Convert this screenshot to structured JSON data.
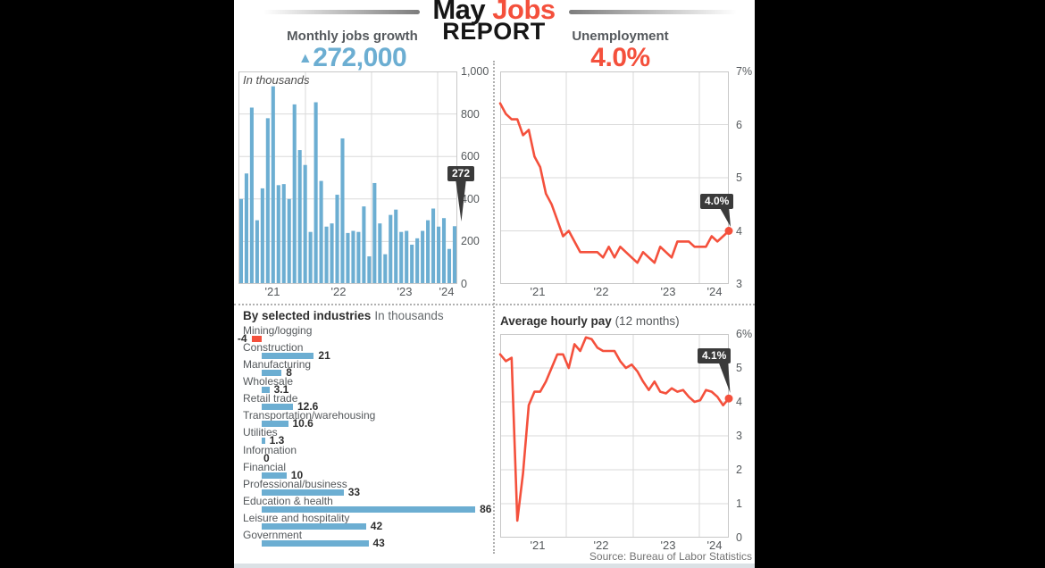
{
  "header": {
    "word_black": "May ",
    "word_red": "Jobs",
    "line2": "REPORT"
  },
  "stats": {
    "jobs_growth": {
      "label": "Monthly jobs growth",
      "arrow": "▲",
      "value": "272,000"
    },
    "unemployment": {
      "label": "Unemployment",
      "value": "4.0%"
    }
  },
  "colors": {
    "accent_blue": "#6CAED2",
    "accent_red": "#F4503C",
    "badge_bg": "#3A3A3A",
    "grid_line": "#DADADA",
    "chart_border": "#C8C8C8",
    "text_dark": "#1C1C1C",
    "text_gray": "#55595C",
    "footer_strip": "#DBE1E5",
    "background": "#000000",
    "panel_bg": "#FFFFFF"
  },
  "source": "Source: Bureau of Labor Statistics",
  "chart_data": [
    {
      "id": "monthly_jobs_growth",
      "type": "bar",
      "title": "Monthly jobs growth",
      "units_note": "In thousands",
      "x_start": "Jan 2021",
      "x_end": "May 2024",
      "frequency": "monthly",
      "xticks": [
        "'21",
        "'22",
        "'23",
        "'24"
      ],
      "yticks": [
        "1,000",
        "800",
        "600",
        "400",
        "200",
        "0"
      ],
      "ylim": [
        0,
        1000
      ],
      "grid": true,
      "values_approx": true,
      "values": [
        400,
        520,
        830,
        300,
        450,
        780,
        930,
        465,
        470,
        400,
        845,
        630,
        560,
        245,
        855,
        485,
        270,
        285,
        420,
        685,
        240,
        250,
        245,
        365,
        130,
        475,
        285,
        140,
        325,
        350,
        245,
        250,
        185,
        215,
        250,
        300,
        355,
        270,
        310,
        165,
        272
      ],
      "callout": {
        "label": "272",
        "point": "May 2024"
      }
    },
    {
      "id": "unemployment_rate",
      "type": "line",
      "title": "Unemployment",
      "x_start": "Jan 2021",
      "x_end": "May 2024",
      "frequency": "monthly",
      "xticks": [
        "'21",
        "'22",
        "'23",
        "'24"
      ],
      "yticks": [
        "7%",
        "6",
        "5",
        "4",
        "3"
      ],
      "ylim": [
        3,
        7
      ],
      "grid": true,
      "values": [
        6.4,
        6.2,
        6.1,
        6.1,
        5.8,
        5.9,
        5.4,
        5.2,
        4.7,
        4.5,
        4.2,
        3.9,
        4.0,
        3.8,
        3.6,
        3.6,
        3.6,
        3.6,
        3.5,
        3.7,
        3.5,
        3.7,
        3.6,
        3.5,
        3.4,
        3.6,
        3.5,
        3.4,
        3.7,
        3.6,
        3.5,
        3.8,
        3.8,
        3.8,
        3.7,
        3.7,
        3.7,
        3.9,
        3.8,
        3.9,
        4.0
      ],
      "callout": {
        "label": "4.0%",
        "point": "May 2024"
      }
    },
    {
      "id": "by_selected_industries",
      "type": "bar",
      "orientation": "horizontal",
      "title": "By selected industries",
      "units_note": "In thousands",
      "categories": [
        "Mining/logging",
        "Construction",
        "Manufacturing",
        "Wholesale",
        "Retail trade",
        "Transportation/warehousing",
        "Utilities",
        "Information",
        "Financial",
        "Professional/business",
        "Education & health",
        "Leisure and hospitality",
        "Government"
      ],
      "values": [
        -4,
        21,
        8,
        3.1,
        12.6,
        10.6,
        1.3,
        0,
        10,
        33,
        86,
        42,
        43
      ],
      "value_labels": [
        "-4",
        "21",
        "8",
        "3.1",
        "12.6",
        "10.6",
        "1.3",
        "0",
        "10",
        "33",
        "86",
        "42",
        "43"
      ]
    },
    {
      "id": "average_hourly_pay",
      "type": "line",
      "title": "Average hourly pay",
      "subtitle": "(12 months)",
      "x_start": "Jan 2021",
      "x_end": "May 2024",
      "frequency": "monthly",
      "xticks": [
        "'21",
        "'22",
        "'23",
        "'24"
      ],
      "yticks": [
        "6%",
        "5",
        "4",
        "3",
        "2",
        "1",
        "0"
      ],
      "ylim": [
        0,
        6
      ],
      "grid": true,
      "values": [
        5.4,
        5.2,
        5.3,
        0.5,
        1.9,
        3.9,
        4.3,
        4.3,
        4.6,
        5.0,
        5.4,
        5.4,
        5.0,
        5.7,
        5.5,
        5.9,
        5.85,
        5.6,
        5.5,
        5.5,
        5.5,
        5.2,
        5.0,
        5.1,
        4.9,
        4.6,
        4.35,
        4.6,
        4.3,
        4.25,
        4.4,
        4.3,
        4.35,
        4.15,
        4.0,
        4.05,
        4.35,
        4.3,
        4.15,
        3.9,
        4.1
      ],
      "callout": {
        "label": "4.1%",
        "point": "May 2024"
      }
    }
  ]
}
